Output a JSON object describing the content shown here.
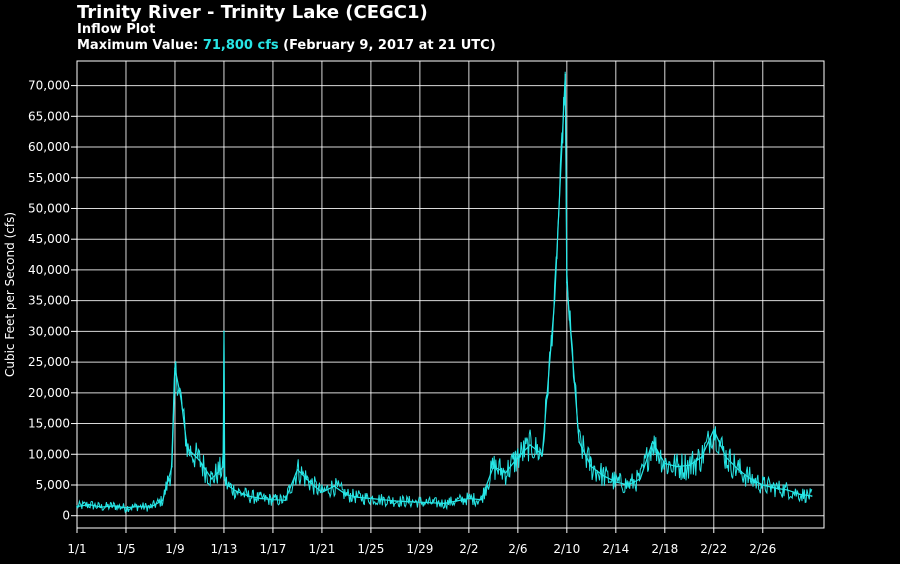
{
  "header": {
    "title": "Trinity River - Trinity Lake (CEGC1)",
    "subtitle": "Inflow Plot",
    "max_prefix": "Maximum Value: ",
    "max_value": "71,800 cfs",
    "max_suffix": " (February 9, 2017 at 21 UTC)"
  },
  "colors": {
    "background": "#000000",
    "line": "#27e6e6",
    "grid": "#ffffff",
    "text": "#ffffff"
  },
  "chart_data": {
    "type": "line",
    "title": "Trinity River - Trinity Lake (CEGC1)",
    "subtitle": "Inflow Plot",
    "ylabel": "Cubic Feet per Second (cfs)",
    "xlabel": "",
    "ylim": [
      -2000,
      74000
    ],
    "xlim": [
      "2017-01-01",
      "2017-03-03"
    ],
    "grid": true,
    "x_ticks": [
      "1/1",
      "1/5",
      "1/9",
      "1/13",
      "1/17",
      "1/21",
      "1/25",
      "1/29",
      "2/2",
      "2/6",
      "2/10",
      "2/14",
      "2/18",
      "2/22",
      "2/26"
    ],
    "y_ticks": [
      0,
      5000,
      10000,
      15000,
      20000,
      25000,
      30000,
      35000,
      40000,
      45000,
      50000,
      55000,
      60000,
      65000,
      70000
    ],
    "y_tick_labels": [
      "0",
      "5,000",
      "10,000",
      "15,000",
      "20,000",
      "25,000",
      "30,000",
      "35,000",
      "40,000",
      "45,000",
      "50,000",
      "55,000",
      "60,000",
      "65,000",
      "70,000"
    ],
    "series": [
      {
        "color": "#27e6e6",
        "x": [
          "2017-01-01",
          "2017-01-02",
          "2017-01-03",
          "2017-01-04",
          "2017-01-05",
          "2017-01-06",
          "2017-01-07",
          "2017-01-08",
          "2017-01-08 18:00",
          "2017-01-09",
          "2017-01-09 12:00",
          "2017-01-10",
          "2017-01-11",
          "2017-01-12",
          "2017-01-12 23:00",
          "2017-01-13",
          "2017-01-13 01:00",
          "2017-01-13 06:00",
          "2017-01-14",
          "2017-01-15",
          "2017-01-16",
          "2017-01-17",
          "2017-01-18",
          "2017-01-19",
          "2017-01-20",
          "2017-01-21",
          "2017-01-22",
          "2017-01-23",
          "2017-01-24",
          "2017-01-25",
          "2017-01-26",
          "2017-01-27",
          "2017-01-28",
          "2017-01-29",
          "2017-01-30",
          "2017-01-31",
          "2017-02-01",
          "2017-02-02",
          "2017-02-03",
          "2017-02-04",
          "2017-02-05",
          "2017-02-06",
          "2017-02-07",
          "2017-02-08",
          "2017-02-09",
          "2017-02-09 21:00",
          "2017-02-10",
          "2017-02-11",
          "2017-02-12",
          "2017-02-13",
          "2017-02-14",
          "2017-02-15",
          "2017-02-16",
          "2017-02-17",
          "2017-02-18",
          "2017-02-19",
          "2017-02-20",
          "2017-02-21",
          "2017-02-22",
          "2017-02-23",
          "2017-02-24",
          "2017-02-25",
          "2017-02-26",
          "2017-02-27",
          "2017-02-28",
          "2017-03-01",
          "2017-03-02"
        ],
        "y": [
          1500,
          1800,
          1400,
          1600,
          1300,
          1500,
          1400,
          2500,
          8000,
          24000,
          19000,
          11000,
          9000,
          6000,
          8000,
          30000,
          6000,
          5000,
          4000,
          3200,
          2800,
          2600,
          2500,
          7500,
          5500,
          3800,
          4800,
          3400,
          3000,
          2800,
          2600,
          2400,
          2300,
          2200,
          2100,
          2000,
          2400,
          2800,
          2600,
          8000,
          7000,
          9500,
          11500,
          10000,
          35000,
          71800,
          38000,
          12000,
          8000,
          6500,
          5500,
          5000,
          6000,
          12000,
          8500,
          8000,
          8200,
          9500,
          14000,
          9500,
          7500,
          6000,
          5000,
          4500,
          4200,
          3500,
          3200
        ]
      }
    ]
  }
}
